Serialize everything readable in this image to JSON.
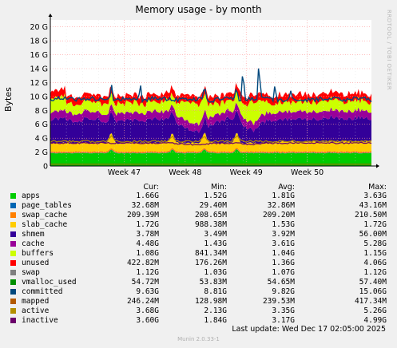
{
  "chart_data": {
    "type": "area",
    "title": "Memory usage - by month",
    "ylabel": "Bytes",
    "xlabel": "",
    "ylim": [
      0,
      21
    ],
    "y_ticks": [
      "0",
      "2 G",
      "4 G",
      "6 G",
      "8 G",
      "10 G",
      "12 G",
      "14 G",
      "16 G",
      "18 G",
      "20 G"
    ],
    "y_tick_values": [
      0,
      2,
      4,
      6,
      8,
      10,
      12,
      14,
      16,
      18,
      20
    ],
    "x_ticks": [
      "Week 47",
      "Week 48",
      "Week 49",
      "Week 50"
    ],
    "x_tick_positions": [
      0.23,
      0.42,
      0.61,
      0.8
    ],
    "grid": true,
    "legend_placement": "bottom",
    "stack_order": [
      "apps",
      "page_tables",
      "swap_cache",
      "slab_cache",
      "cache",
      "buffers",
      "unused",
      "swap"
    ],
    "stack_avg_gb": {
      "apps": 1.81,
      "page_tables": 0.03,
      "swap_cache": 0.2,
      "slab_cache": 1.53,
      "cache": 3.61,
      "buffers": 1.04,
      "unused": 1.36,
      "swap": 1.07
    },
    "lines_avg_gb": {
      "committed": 9.82,
      "active": 3.35,
      "inactive": 3.17,
      "mapped": 0.24
    },
    "committed_spikes": [
      {
        "x": 0.19,
        "y": 11.8
      },
      {
        "x": 0.28,
        "y": 11.9
      },
      {
        "x": 0.48,
        "y": 11.9
      },
      {
        "x": 0.58,
        "y": 11.6
      },
      {
        "x": 0.6,
        "y": 14.0
      },
      {
        "x": 0.65,
        "y": 15.1
      },
      {
        "x": 0.7,
        "y": 11.8
      },
      {
        "x": 0.75,
        "y": 11.0
      }
    ],
    "columns": [
      "Cur:",
      "Min:",
      "Avg:",
      "Max:"
    ],
    "series": [
      {
        "name": "apps",
        "color": "#00cc00",
        "cur": "1.66G",
        "min": "1.52G",
        "avg": "1.81G",
        "max": "3.63G"
      },
      {
        "name": "page_tables",
        "color": "#0066b3",
        "cur": "32.68M",
        "min": "29.40M",
        "avg": "32.86M",
        "max": "43.16M"
      },
      {
        "name": "swap_cache",
        "color": "#ff8000",
        "cur": "209.39M",
        "min": "208.65M",
        "avg": "209.20M",
        "max": "210.50M"
      },
      {
        "name": "slab_cache",
        "color": "#ffcc00",
        "cur": "1.72G",
        "min": "988.38M",
        "avg": "1.53G",
        "max": "1.72G"
      },
      {
        "name": "shmem",
        "color": "#330099",
        "cur": "3.78M",
        "min": "3.49M",
        "avg": "3.92M",
        "max": "56.00M"
      },
      {
        "name": "cache",
        "color": "#990099",
        "cur": "4.48G",
        "min": "1.43G",
        "avg": "3.61G",
        "max": "5.28G"
      },
      {
        "name": "buffers",
        "color": "#ccff00",
        "cur": "1.08G",
        "min": "841.34M",
        "avg": "1.04G",
        "max": "1.15G"
      },
      {
        "name": "unused",
        "color": "#ff0000",
        "cur": "422.82M",
        "min": "176.26M",
        "avg": "1.36G",
        "max": "4.06G"
      },
      {
        "name": "swap",
        "color": "#808080",
        "cur": "1.12G",
        "min": "1.03G",
        "avg": "1.07G",
        "max": "1.12G"
      },
      {
        "name": "vmalloc_used",
        "color": "#008f00",
        "cur": "54.72M",
        "min": "53.83M",
        "avg": "54.65M",
        "max": "57.40M"
      },
      {
        "name": "committed",
        "color": "#00487d",
        "cur": "9.63G",
        "min": "8.81G",
        "avg": "9.82G",
        "max": "15.06G"
      },
      {
        "name": "mapped",
        "color": "#b35a00",
        "cur": "246.24M",
        "min": "128.98M",
        "avg": "239.53M",
        "max": "417.34M"
      },
      {
        "name": "active",
        "color": "#b38f00",
        "cur": "3.68G",
        "min": "2.13G",
        "avg": "3.35G",
        "max": "5.26G"
      },
      {
        "name": "inactive",
        "color": "#6b006b",
        "cur": "3.60G",
        "min": "1.84G",
        "avg": "3.17G",
        "max": "4.99G"
      }
    ],
    "fill_colors": {
      "apps": "#00cc00",
      "page_tables": "#0066b3",
      "swap_cache": "#ff8000",
      "slab_cache": "#ffcc00",
      "cache": "#330099",
      "buffers": "#990099",
      "unused": "#ccff00",
      "swap": "#ff0000"
    }
  },
  "footer": {
    "last_update": "Last update:  Wed Dec 17 02:05:00 2025",
    "version": "Munin 2.0.33-1"
  },
  "watermark": "RRDTOOL / TOBI OETIKER"
}
